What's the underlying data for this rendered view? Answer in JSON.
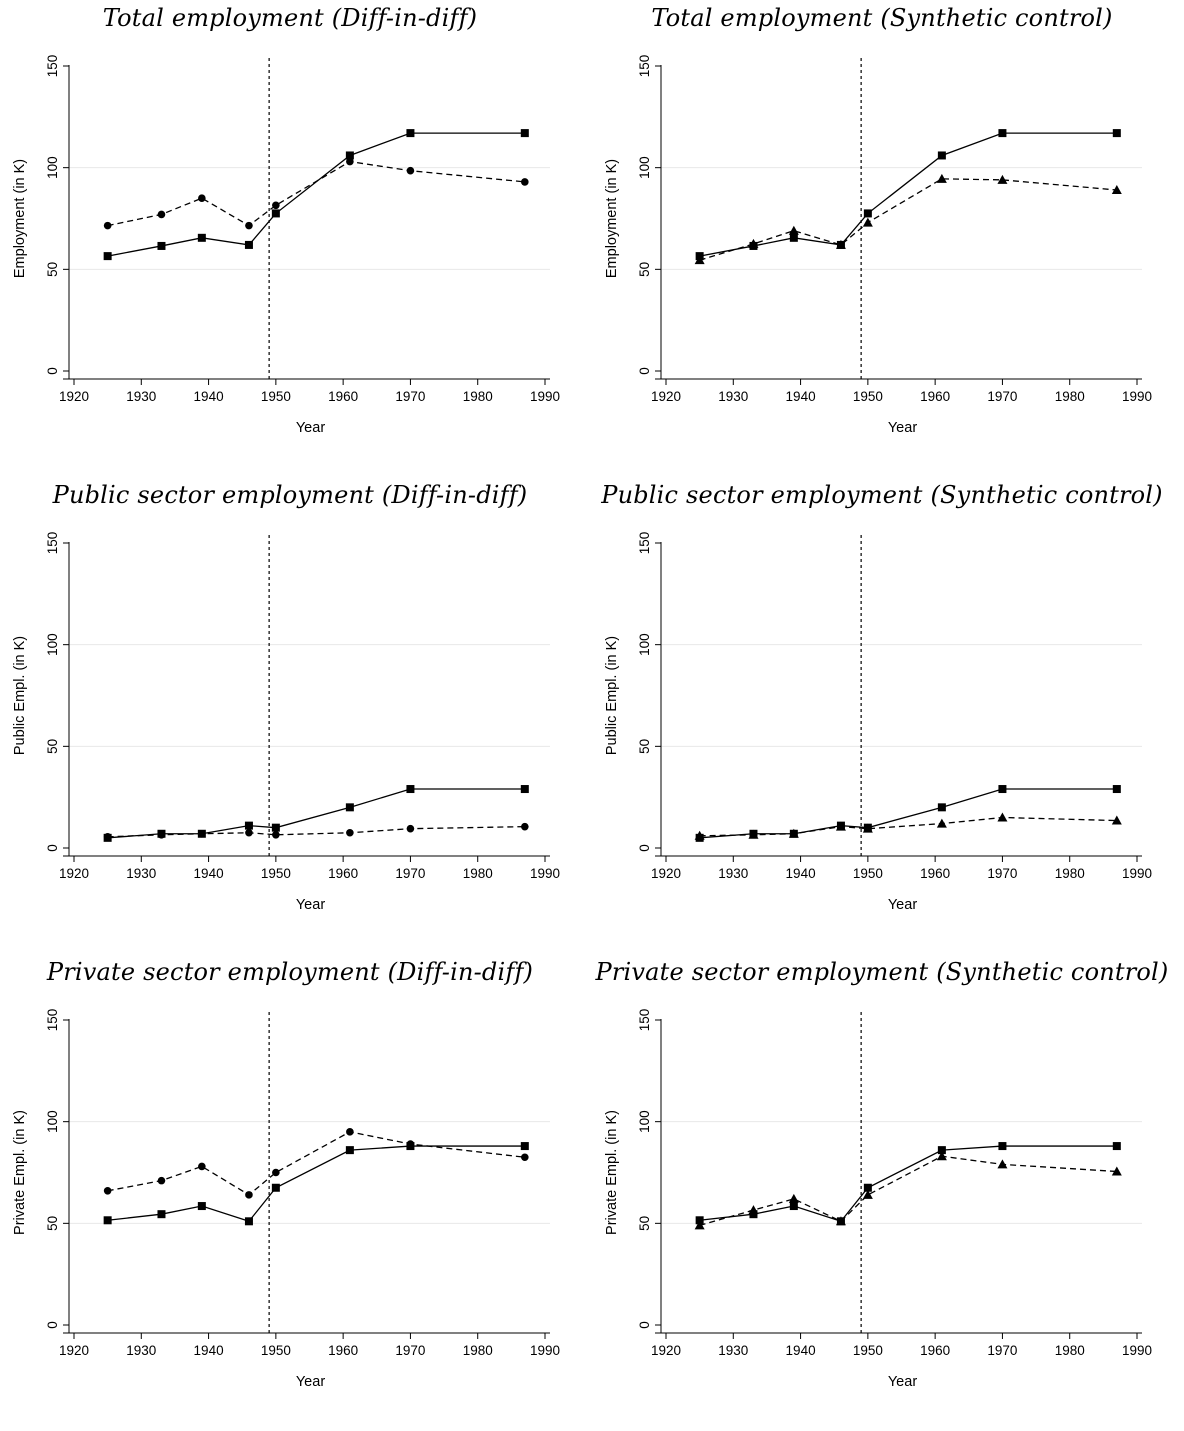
{
  "chart_data": [
    {
      "type": "line",
      "title": "Total employment (Diff-in-diff)",
      "xlabel": "Year",
      "ylabel": "Employment (in K)",
      "xlim": [
        1920,
        1990
      ],
      "ylim": [
        0,
        150
      ],
      "xticks": [
        "1920",
        "1930",
        "1940",
        "1950",
        "1960",
        "1970",
        "1980",
        "1990"
      ],
      "yticks": [
        "0",
        "50",
        "100",
        "150"
      ],
      "grid": "horizontal",
      "reference_line_x": 1949,
      "series": [
        {
          "marker": "square",
          "dash": "solid",
          "x": [
            1925,
            1933,
            1939,
            1946,
            1950,
            1961,
            1970,
            1987
          ],
          "values": [
            56.5,
            61.5,
            65.5,
            62,
            77.5,
            106,
            117,
            117
          ]
        },
        {
          "marker": "circle",
          "dash": "dashed",
          "x": [
            1925,
            1933,
            1939,
            1946,
            1950,
            1961,
            1970,
            1987
          ],
          "values": [
            71.5,
            77,
            85,
            71.5,
            81.5,
            103,
            98.5,
            93
          ]
        }
      ]
    },
    {
      "type": "line",
      "title": "Total employment (Synthetic control)",
      "xlabel": "Year",
      "ylabel": "Employment (in K)",
      "xlim": [
        1920,
        1990
      ],
      "ylim": [
        0,
        150
      ],
      "xticks": [
        "1920",
        "1930",
        "1940",
        "1950",
        "1960",
        "1970",
        "1980",
        "1990"
      ],
      "yticks": [
        "0",
        "50",
        "100",
        "150"
      ],
      "grid": "horizontal",
      "reference_line_x": 1949,
      "series": [
        {
          "marker": "square",
          "dash": "solid",
          "x": [
            1925,
            1933,
            1939,
            1946,
            1950,
            1961,
            1970,
            1987
          ],
          "values": [
            56.5,
            61.5,
            65.5,
            62,
            77.5,
            106,
            117,
            117
          ]
        },
        {
          "marker": "triangle",
          "dash": "dashed",
          "x": [
            1925,
            1933,
            1939,
            1946,
            1950,
            1961,
            1970,
            1987
          ],
          "values": [
            54.5,
            62.5,
            69,
            62,
            73,
            94.5,
            94,
            89
          ]
        }
      ]
    },
    {
      "type": "line",
      "title": "Public sector employment (Diff-in-diff)",
      "xlabel": "Year",
      "ylabel": "Public Empl. (in K)",
      "xlim": [
        1920,
        1990
      ],
      "ylim": [
        0,
        150
      ],
      "xticks": [
        "1920",
        "1930",
        "1940",
        "1950",
        "1960",
        "1970",
        "1980",
        "1990"
      ],
      "yticks": [
        "0",
        "50",
        "100",
        "150"
      ],
      "grid": "horizontal",
      "reference_line_x": 1949,
      "series": [
        {
          "marker": "square",
          "dash": "solid",
          "x": [
            1925,
            1933,
            1939,
            1946,
            1950,
            1961,
            1970,
            1987
          ],
          "values": [
            5,
            7,
            7,
            11,
            10,
            20,
            29,
            29
          ]
        },
        {
          "marker": "circle",
          "dash": "dashed",
          "x": [
            1925,
            1933,
            1939,
            1946,
            1950,
            1961,
            1970,
            1987
          ],
          "values": [
            5.5,
            6.5,
            7,
            7.5,
            6.5,
            7.5,
            9.5,
            10.5
          ]
        }
      ]
    },
    {
      "type": "line",
      "title": "Public sector employment (Synthetic control)",
      "xlabel": "Year",
      "ylabel": "Public Empl. (in K)",
      "xlim": [
        1920,
        1990
      ],
      "ylim": [
        0,
        150
      ],
      "xticks": [
        "1920",
        "1930",
        "1940",
        "1950",
        "1960",
        "1970",
        "1980",
        "1990"
      ],
      "yticks": [
        "0",
        "50",
        "100",
        "150"
      ],
      "grid": "horizontal",
      "reference_line_x": 1949,
      "series": [
        {
          "marker": "square",
          "dash": "solid",
          "x": [
            1925,
            1933,
            1939,
            1946,
            1950,
            1961,
            1970,
            1987
          ],
          "values": [
            5,
            7,
            7,
            11,
            10,
            20,
            29,
            29
          ]
        },
        {
          "marker": "triangle",
          "dash": "dashed",
          "x": [
            1925,
            1933,
            1939,
            1946,
            1950,
            1961,
            1970,
            1987
          ],
          "values": [
            6,
            6.5,
            7,
            10.5,
            9.5,
            12,
            15,
            13.5
          ]
        }
      ]
    },
    {
      "type": "line",
      "title": "Private sector employment (Diff-in-diff)",
      "xlabel": "Year",
      "ylabel": "Private Empl. (in K)",
      "xlim": [
        1920,
        1990
      ],
      "ylim": [
        0,
        150
      ],
      "xticks": [
        "1920",
        "1930",
        "1940",
        "1950",
        "1960",
        "1970",
        "1980",
        "1990"
      ],
      "yticks": [
        "0",
        "50",
        "100",
        "150"
      ],
      "grid": "horizontal",
      "reference_line_x": 1949,
      "series": [
        {
          "marker": "square",
          "dash": "solid",
          "x": [
            1925,
            1933,
            1939,
            1946,
            1950,
            1961,
            1970,
            1987
          ],
          "values": [
            51.5,
            54.5,
            58.5,
            51,
            67.5,
            86,
            88,
            88
          ]
        },
        {
          "marker": "circle",
          "dash": "dashed",
          "x": [
            1925,
            1933,
            1939,
            1946,
            1950,
            1961,
            1970,
            1987
          ],
          "values": [
            66,
            71,
            78,
            64,
            75,
            95,
            89,
            82.5
          ]
        }
      ]
    },
    {
      "type": "line",
      "title": "Private sector employment (Synthetic control)",
      "xlabel": "Year",
      "ylabel": "Private Empl. (in K)",
      "xlim": [
        1920,
        1990
      ],
      "ylim": [
        0,
        150
      ],
      "xticks": [
        "1920",
        "1930",
        "1940",
        "1950",
        "1960",
        "1970",
        "1980",
        "1990"
      ],
      "yticks": [
        "0",
        "50",
        "100",
        "150"
      ],
      "grid": "horizontal",
      "reference_line_x": 1949,
      "series": [
        {
          "marker": "square",
          "dash": "solid",
          "x": [
            1925,
            1933,
            1939,
            1946,
            1950,
            1961,
            1970,
            1987
          ],
          "values": [
            51.5,
            54.5,
            58.5,
            51,
            67.5,
            86,
            88,
            88
          ]
        },
        {
          "marker": "triangle",
          "dash": "dashed",
          "x": [
            1925,
            1933,
            1939,
            1946,
            1950,
            1961,
            1970,
            1987
          ],
          "values": [
            49,
            56.5,
            62,
            51,
            64,
            83,
            79,
            75.5
          ]
        }
      ]
    }
  ]
}
